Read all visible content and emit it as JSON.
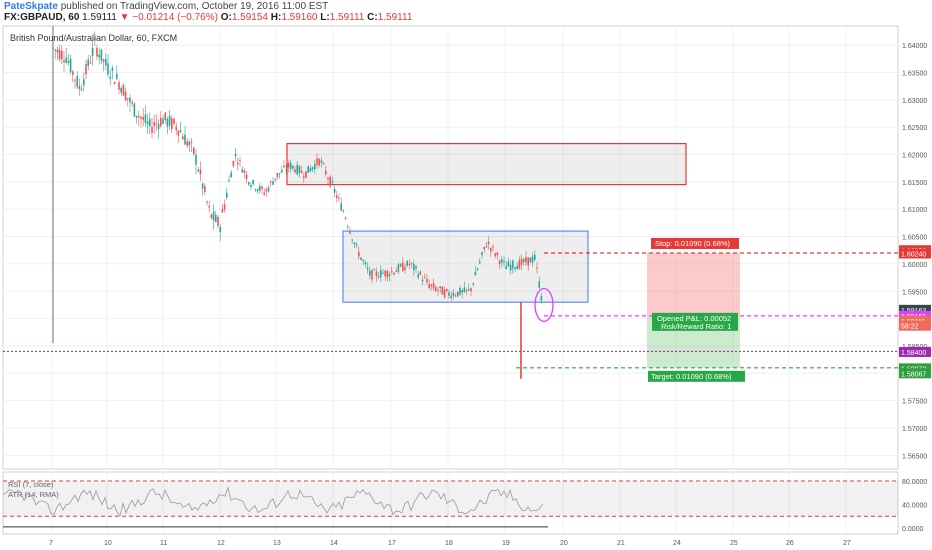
{
  "header": {
    "author": "PateSkpate",
    "published_text": "published on TradingView.com, October 19, 2016 11:00 EST",
    "symbol": "FX:GBPAUD, 60",
    "last": "1.59111",
    "change": "▼ −0.01214 (−0.76%)",
    "o_label": "O:",
    "o_value": "1.59154",
    "h_label": "H:",
    "h_value": "1.59160",
    "l_label": "L:",
    "l_value": "1.59111",
    "c_label": "C:",
    "c_value": "1.59111"
  },
  "chart_title": "British Pound/Australian Dollar, 60, FXCM",
  "position": {
    "stop_text": "Stop: 0.01090 (0.68%)",
    "pnl_text": "Opened P&L: 0.00052",
    "rr_text": "Risk/Reward Ratio: 1",
    "target_text": "Target: 0.01090 (0.68%)"
  },
  "price_labels": [
    {
      "text": "1.60253",
      "price": 1.6025,
      "bg": "#e53935"
    },
    {
      "text": "1.60240",
      "price": 1.6019,
      "bg": "#e53935"
    },
    {
      "text": "1.59163",
      "price": 1.5916,
      "bg": "#37474f"
    },
    {
      "text": "1.59156",
      "price": 1.5905,
      "bg": "#e040fb"
    },
    {
      "text": "1.59111",
      "price": 1.5896,
      "bg": "#ef6c5a"
    },
    {
      "text": "58:22",
      "price": 1.5887,
      "bg": "#ef6c5a"
    },
    {
      "text": "1.58400",
      "price": 1.5839,
      "bg": "#9c27b0"
    },
    {
      "text": "1.58073",
      "price": 1.5809,
      "bg": "#2e9e3e"
    },
    {
      "text": "1.58067",
      "price": 1.58,
      "bg": "#2e9e3e"
    }
  ],
  "indicators": {
    "rsi_label": "RSI (7, close)",
    "atr_label": "ATR (14, RMA)",
    "ticks": [
      {
        "text": "80.0000",
        "v": 80
      },
      {
        "text": "40.0000",
        "v": 40
      },
      {
        "text": "0.0000",
        "v": 0
      }
    ]
  },
  "colors": {
    "up": "#26a69a",
    "down": "#ef5350",
    "rect_red": "#e53935",
    "rect_blue": "#5b8def",
    "magenta": "#e040fb",
    "purple": "#8e24aa",
    "green": "#27a745",
    "red": "#e53935"
  },
  "chart_data": {
    "type": "candlestick",
    "y_axis_ticks": [
      "1.64000",
      "1.63500",
      "1.63000",
      "1.62500",
      "1.62000",
      "1.61500",
      "1.61000",
      "1.60500",
      "1.60000",
      "1.59500",
      "1.59000",
      "1.58500",
      "1.58000",
      "1.57500",
      "1.57000",
      "1.56500"
    ],
    "y_axis_values": [
      1.64,
      1.635,
      1.63,
      1.625,
      1.62,
      1.615,
      1.61,
      1.605,
      1.6,
      1.595,
      1.59,
      1.585,
      1.58,
      1.575,
      1.57,
      1.565
    ],
    "x_axis_ticks": [
      "7",
      "10",
      "11",
      "12",
      "13",
      "14",
      "17",
      "18",
      "19",
      "20",
      "21",
      "24",
      "25",
      "26",
      "27"
    ],
    "ylim": [
      1.5625,
      1.6435
    ],
    "series_approx": [
      {
        "x": "7",
        "close": 1.6395
      },
      {
        "x": "10",
        "close": 1.636
      },
      {
        "x": "11",
        "close": 1.6265
      },
      {
        "x": "12",
        "close": 1.607
      },
      {
        "x": "13",
        "close": 1.616
      },
      {
        "x": "14",
        "close": 1.614
      },
      {
        "x": "17",
        "close": 1.5985
      },
      {
        "x": "18",
        "close": 1.5945
      },
      {
        "x": "19",
        "close": 1.5995
      },
      {
        "x": "19",
        "close": 1.5911
      }
    ],
    "resistance_zone": [
      1.6145,
      1.622
    ],
    "range_zone": [
      1.593,
      1.606
    ],
    "stop_level": 1.602,
    "entry_level": 1.5905,
    "target_level": 1.581,
    "support_level": 1.584,
    "spike_low": 1.579
  }
}
